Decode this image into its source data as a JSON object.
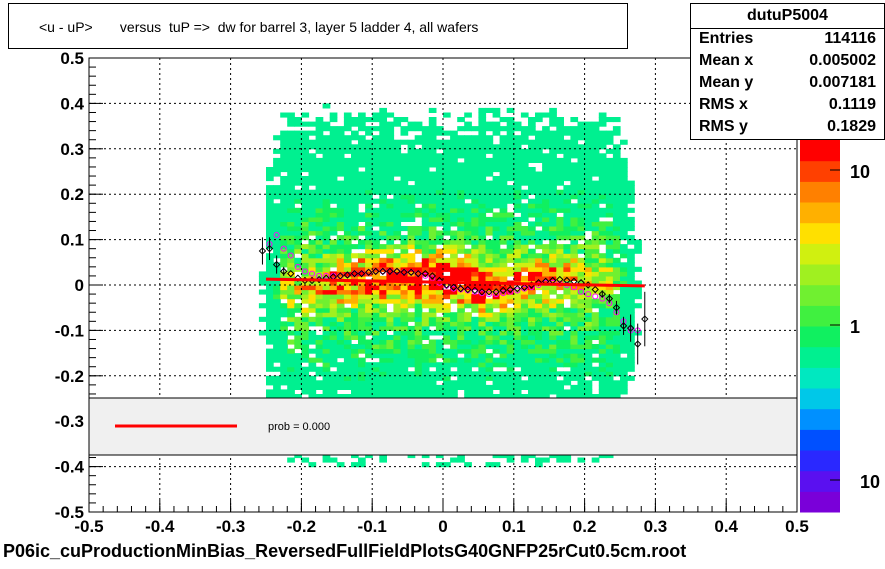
{
  "title": "<u - uP>       versus  tuP =>  dw for barrel 3, layer 5 ladder 4, all wafers",
  "stats": {
    "name": "dutuP5004",
    "rows": [
      {
        "label": "Entries",
        "value": "114116"
      },
      {
        "label": "Mean x",
        "value": "0.005002"
      },
      {
        "label": "Mean y",
        "value": "0.007181"
      },
      {
        "label": "RMS x",
        "value": "0.1119"
      },
      {
        "label": "RMS y",
        "value": "0.1829"
      }
    ]
  },
  "legend": {
    "text": "prob = 0.000"
  },
  "footer": "P06ic_cuProductionMinBias_ReversedFullFieldPlotsG40GNFP25rCut0.5cm.root",
  "chart_data": {
    "type": "heatmap",
    "xlim": [
      -0.5,
      0.5
    ],
    "ylim": [
      -0.5,
      0.5
    ],
    "x_ticks": [
      "-0.5",
      "-0.4",
      "-0.3",
      "-0.2",
      "-0.1",
      "0",
      "0.1",
      "0.2",
      "0.3",
      "0.4",
      "0.5"
    ],
    "y_ticks": [
      "-0.5",
      "-0.4",
      "-0.3",
      "-0.2",
      "-0.1",
      "0",
      "0.1",
      "0.2",
      "0.3",
      "0.4",
      "0.5"
    ],
    "grid": true,
    "color_scale": {
      "log": true,
      "tick_labels": [
        "10",
        "1",
        "10"
      ],
      "colors": [
        "#7a00d9",
        "#5a10f0",
        "#2a28ff",
        "#0050ff",
        "#0090ff",
        "#00c8e8",
        "#00e8c0",
        "#00f090",
        "#10f060",
        "#40f040",
        "#70f030",
        "#a0f020",
        "#d0f010",
        "#ffe000",
        "#ffb000",
        "#ff8000",
        "#ff4000",
        "#ff0000"
      ]
    },
    "profile_black": {
      "x": [
        -0.255,
        -0.245,
        -0.235,
        -0.225,
        -0.215,
        -0.205,
        -0.195,
        -0.185,
        -0.175,
        -0.165,
        -0.155,
        -0.145,
        -0.135,
        -0.125,
        -0.115,
        -0.105,
        -0.095,
        -0.085,
        -0.075,
        -0.065,
        -0.055,
        -0.045,
        -0.035,
        -0.025,
        -0.015,
        -0.005,
        0.005,
        0.015,
        0.025,
        0.035,
        0.045,
        0.055,
        0.065,
        0.075,
        0.085,
        0.095,
        0.105,
        0.115,
        0.125,
        0.135,
        0.145,
        0.155,
        0.165,
        0.175,
        0.185,
        0.195,
        0.205,
        0.215,
        0.225,
        0.235,
        0.245,
        0.255,
        0.265,
        0.275,
        0.285
      ],
      "y": [
        0.075,
        0.08,
        0.045,
        0.03,
        0.025,
        0.015,
        0.01,
        0.01,
        0.012,
        0.015,
        0.018,
        0.02,
        0.022,
        0.025,
        0.025,
        0.028,
        0.03,
        0.03,
        0.03,
        0.03,
        0.028,
        0.028,
        0.025,
        0.025,
        0.02,
        0.01,
        0.0,
        -0.005,
        -0.008,
        -0.01,
        -0.012,
        -0.015,
        -0.015,
        -0.015,
        -0.012,
        -0.01,
        -0.008,
        -0.005,
        0.0,
        0.005,
        0.008,
        0.01,
        0.012,
        0.01,
        0.008,
        0.005,
        0.0,
        -0.01,
        -0.02,
        -0.03,
        -0.05,
        -0.09,
        -0.095,
        -0.13,
        -0.075
      ],
      "err": [
        0.03,
        0.025,
        0.02,
        0.01,
        0.005,
        0.004,
        0.003,
        0.003,
        0.003,
        0.003,
        0.003,
        0.003,
        0.003,
        0.003,
        0.003,
        0.003,
        0.003,
        0.003,
        0.003,
        0.003,
        0.003,
        0.003,
        0.003,
        0.003,
        0.003,
        0.003,
        0.003,
        0.003,
        0.003,
        0.003,
        0.003,
        0.003,
        0.003,
        0.003,
        0.003,
        0.003,
        0.003,
        0.003,
        0.003,
        0.003,
        0.003,
        0.003,
        0.003,
        0.003,
        0.003,
        0.003,
        0.004,
        0.005,
        0.008,
        0.01,
        0.015,
        0.02,
        0.03,
        0.045,
        0.06
      ]
    },
    "profile_magenta": {
      "x": [
        -0.245,
        -0.235,
        -0.225,
        -0.215,
        -0.205,
        -0.195,
        -0.185,
        -0.175,
        -0.165,
        -0.155,
        -0.145,
        -0.135,
        -0.125,
        -0.115,
        -0.105,
        -0.095,
        -0.085,
        -0.075,
        -0.065,
        -0.055,
        -0.045,
        -0.035,
        -0.025,
        -0.015,
        -0.005,
        0.005,
        0.015,
        0.025,
        0.035,
        0.045,
        0.055,
        0.065,
        0.075,
        0.085,
        0.095,
        0.105,
        0.115,
        0.125,
        0.135,
        0.145,
        0.155,
        0.165,
        0.175,
        0.185,
        0.195,
        0.205,
        0.215,
        0.225,
        0.235,
        0.245,
        0.255,
        0.265,
        0.275
      ],
      "y": [
        0.09,
        0.11,
        0.08,
        0.065,
        0.04,
        0.03,
        0.025,
        0.02,
        0.02,
        0.02,
        0.02,
        0.022,
        0.025,
        0.025,
        0.028,
        0.03,
        0.03,
        0.03,
        0.03,
        0.028,
        0.028,
        0.025,
        0.02,
        0.015,
        0.005,
        -0.002,
        -0.008,
        -0.01,
        -0.012,
        -0.015,
        -0.018,
        -0.02,
        -0.02,
        -0.018,
        -0.015,
        -0.012,
        -0.008,
        -0.005,
        0.0,
        0.005,
        0.005,
        0.003,
        0.0,
        -0.005,
        -0.015,
        -0.02,
        -0.025,
        -0.03,
        -0.04,
        -0.06,
        -0.08,
        -0.1,
        -0.1
      ]
    },
    "fit_line": {
      "x": [
        -0.25,
        0.285
      ],
      "y": [
        0.013,
        -0.002
      ]
    }
  }
}
